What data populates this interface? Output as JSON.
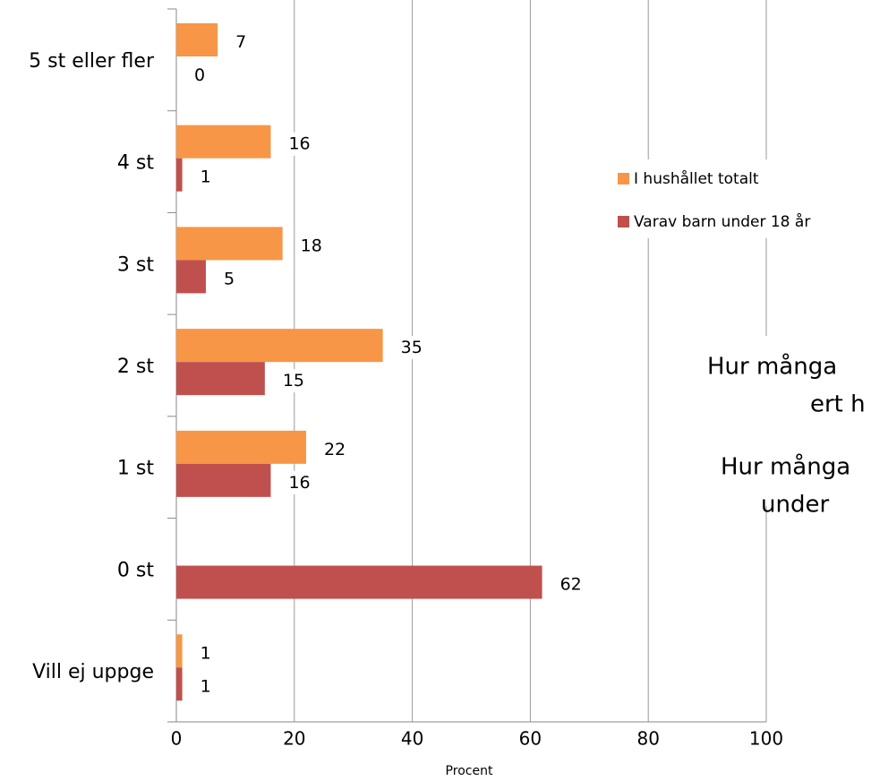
{
  "chart_data": {
    "type": "bar",
    "orientation": "horizontal",
    "categories": [
      "5 st eller fler",
      "4 st",
      "3 st",
      "2 st",
      "1 st",
      "0 st",
      "Vill ej uppge"
    ],
    "series": [
      {
        "name": "I hushållet totalt",
        "color": "#f79646",
        "values": [
          7,
          16,
          18,
          35,
          22,
          null,
          1
        ]
      },
      {
        "name": "Varav barn under 18 år",
        "color": "#c0504d",
        "values": [
          0,
          1,
          5,
          15,
          16,
          62,
          1
        ]
      }
    ],
    "xlim": [
      0,
      100
    ],
    "xticks": [
      0,
      20,
      40,
      60,
      80,
      100
    ],
    "x_label": "Procent",
    "grid": true,
    "annotations": [
      "Hur många",
      "ert h",
      "Hur många",
      "under"
    ]
  }
}
